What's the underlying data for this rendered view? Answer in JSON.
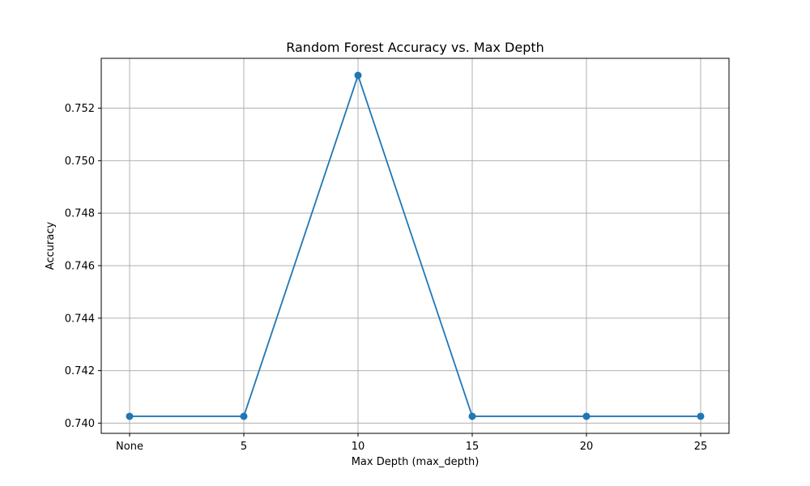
{
  "chart_data": {
    "type": "line",
    "title": "Random Forest Accuracy vs. Max Depth",
    "xlabel": "Max Depth (max_depth)",
    "ylabel": "Accuracy",
    "categories": [
      "None",
      "5",
      "10",
      "15",
      "20",
      "25"
    ],
    "series": [
      {
        "values": [
          0.74026,
          0.74026,
          0.75325,
          0.74026,
          0.74026,
          0.74026
        ],
        "color": "#1f77b4",
        "marker": "circle"
      }
    ],
    "yticks": [
      "0.740",
      "0.742",
      "0.744",
      "0.746",
      "0.748",
      "0.750",
      "0.752"
    ],
    "ylim": [
      0.73961,
      0.7539
    ],
    "grid": true
  }
}
